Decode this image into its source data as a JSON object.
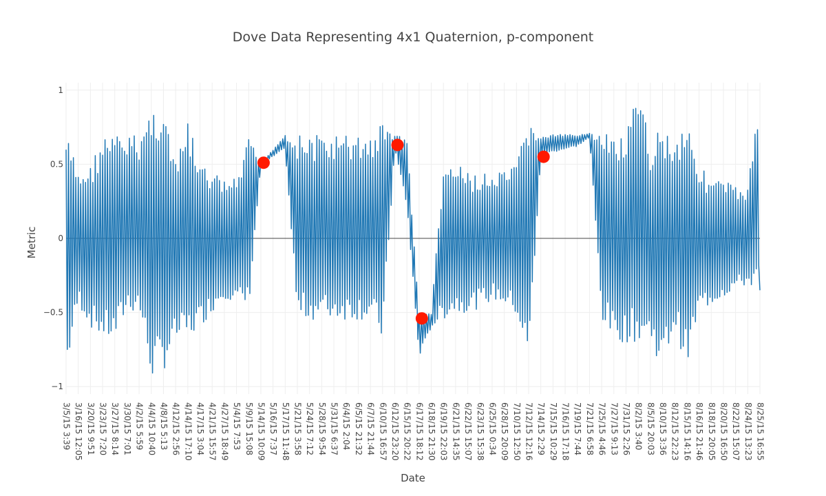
{
  "chart_data": {
    "type": "line",
    "title": "Dove Data Representing 4x1 Quaternion, p-component",
    "xlabel": "Date",
    "ylabel": "Metric",
    "ylim": [
      -1.05,
      1.05
    ],
    "yticks": [
      1,
      0.5,
      0,
      -0.5,
      -1
    ],
    "ytick_labels": [
      "1",
      "0.5",
      "0",
      "−0.5",
      "−1"
    ],
    "grid": true,
    "legend": "none",
    "line_color": "#1f77b4",
    "marker_color": "#ff1a00",
    "x_tick_labels": [
      "3/5/15 3:39",
      "3/16/15 12:05",
      "3/20/15 9:51",
      "3/23/15 7:20",
      "3/27/15 8:14",
      "3/30/15 7:01",
      "4/2/15 5:59",
      "4/4/15 10:40",
      "4/8/15 5:13",
      "4/12/15 2:56",
      "4/14/15 17:10",
      "4/17/15 3:04",
      "4/21/15 15:57",
      "4/27/15 18:49",
      "5/4/15 7:53",
      "5/9/15 15:08",
      "5/14/15 10:09",
      "5/16/15 7:37",
      "5/17/15 11:48",
      "5/21/15 3:58",
      "5/24/15 7:12",
      "5/28/15 9:54",
      "5/31/15 6:37",
      "6/4/15 2:04",
      "6/5/15 21:32",
      "6/7/15 21:44",
      "6/10/15 16:57",
      "6/12/15 23:20",
      "6/15/15 20:22",
      "6/17/15 18:12",
      "6/18/15 21:30",
      "6/19/15 22:03",
      "6/21/15 14:35",
      "6/22/15 15:07",
      "6/23/15 15:38",
      "6/25/15 0:34",
      "6/28/15 20:09",
      "7/10/15 12:50",
      "7/12/15 12:16",
      "7/14/15 2:29",
      "7/15/15 10:29",
      "7/16/15 17:18",
      "7/19/15 7:44",
      "7/21/15 6:58",
      "7/25/15 4:46",
      "7/27/15 9:13",
      "7/31/15 2:26",
      "8/2/15 3:40",
      "8/5/15 20:03",
      "8/10/15 3:36",
      "8/12/15 22:23",
      "8/15/15 14:16",
      "8/16/15 21:46",
      "8/18/15 20:05",
      "8/20/15 16:50",
      "8/22/15 15:07",
      "8/24/15 13:23",
      "8/25/15 16:55"
    ],
    "highlight_points": [
      {
        "x": "5/14/15 10:09",
        "y": 0.51
      },
      {
        "x": "6/12/15 23:20",
        "y": 0.63
      },
      {
        "x": "6/17/15 18:12",
        "y": -0.54
      },
      {
        "x": "7/14/15 2:29",
        "y": 0.55
      }
    ],
    "envelope": [
      {
        "x": "3/5/15 3:39",
        "hi": 0.72,
        "lo": -0.93
      },
      {
        "x": "3/16/15 12:05",
        "hi": 0.45,
        "lo": -0.45
      },
      {
        "x": "3/20/15 9:51",
        "hi": 0.5,
        "lo": -0.6
      },
      {
        "x": "3/23/15 7:20",
        "hi": 0.7,
        "lo": -0.68
      },
      {
        "x": "3/27/15 8:14",
        "hi": 0.7,
        "lo": -0.7
      },
      {
        "x": "3/30/15 7:01",
        "hi": 0.7,
        "lo": -0.5
      },
      {
        "x": "4/2/15 5:59",
        "hi": 0.7,
        "lo": -0.5
      },
      {
        "x": "4/4/15 10:40",
        "hi": 0.9,
        "lo": -0.95
      },
      {
        "x": "4/8/15 5:13",
        "hi": 0.92,
        "lo": -0.9
      },
      {
        "x": "4/12/15 2:56",
        "hi": 0.5,
        "lo": -0.7
      },
      {
        "x": "4/14/15 17:10",
        "hi": 0.8,
        "lo": -0.7
      },
      {
        "x": "4/17/15 3:04",
        "hi": 0.5,
        "lo": -0.6
      },
      {
        "x": "4/21/15 15:57",
        "hi": 0.45,
        "lo": -0.5
      },
      {
        "x": "4/27/15 18:49",
        "hi": 0.4,
        "lo": -0.4
      },
      {
        "x": "5/4/15 7:53",
        "hi": 0.4,
        "lo": -0.45
      },
      {
        "x": "5/9/15 15:08",
        "hi": 0.68,
        "lo": -0.48
      },
      {
        "x": "5/14/15 10:09",
        "hi": 0.51,
        "lo": 0.49
      },
      {
        "x": "5/16/15 7:37",
        "hi": 0.6,
        "lo": 0.55
      },
      {
        "x": "5/17/15 11:48",
        "hi": 0.7,
        "lo": 0.6
      },
      {
        "x": "5/21/15 3:58",
        "hi": 0.7,
        "lo": -0.55
      },
      {
        "x": "5/24/15 7:12",
        "hi": 0.7,
        "lo": -0.55
      },
      {
        "x": "5/28/15 9:54",
        "hi": 0.7,
        "lo": -0.55
      },
      {
        "x": "5/31/15 6:37",
        "hi": 0.7,
        "lo": -0.55
      },
      {
        "x": "6/4/15 2:04",
        "hi": 0.7,
        "lo": -0.55
      },
      {
        "x": "6/5/15 21:32",
        "hi": 0.7,
        "lo": -0.55
      },
      {
        "x": "6/7/15 21:44",
        "hi": 0.7,
        "lo": -0.55
      },
      {
        "x": "6/10/15 16:57",
        "hi": 0.79,
        "lo": -0.7
      },
      {
        "x": "6/12/15 23:20",
        "hi": 0.7,
        "lo": 0.6
      },
      {
        "x": "6/15/15 20:22",
        "hi": 0.68,
        "lo": 0.2
      },
      {
        "x": "6/17/15 18:12",
        "hi": -0.5,
        "lo": -0.8
      },
      {
        "x": "6/18/15 21:30",
        "hi": -0.5,
        "lo": -0.6
      },
      {
        "x": "6/19/15 22:03",
        "hi": 0.5,
        "lo": -0.55
      },
      {
        "x": "6/21/15 14:35",
        "hi": 0.5,
        "lo": -0.5
      },
      {
        "x": "6/22/15 15:07",
        "hi": 0.45,
        "lo": -0.5
      },
      {
        "x": "6/23/15 15:38",
        "hi": 0.44,
        "lo": -0.47
      },
      {
        "x": "6/25/15 0:34",
        "hi": 0.43,
        "lo": -0.42
      },
      {
        "x": "6/28/15 20:09",
        "hi": 0.45,
        "lo": -0.45
      },
      {
        "x": "7/10/15 12:50",
        "hi": 0.5,
        "lo": -0.52
      },
      {
        "x": "7/12/15 12:16",
        "hi": 0.85,
        "lo": -0.85
      },
      {
        "x": "7/14/15 2:29",
        "hi": 0.68,
        "lo": 0.55
      },
      {
        "x": "7/15/15 10:29",
        "hi": 0.7,
        "lo": 0.58
      },
      {
        "x": "7/16/15 17:18",
        "hi": 0.7,
        "lo": 0.6
      },
      {
        "x": "7/19/15 7:44",
        "hi": 0.7,
        "lo": 0.62
      },
      {
        "x": "7/21/15 6:58",
        "hi": 0.71,
        "lo": 0.68
      },
      {
        "x": "7/25/15 4:46",
        "hi": 0.7,
        "lo": -0.55
      },
      {
        "x": "7/27/15 9:13",
        "hi": 0.7,
        "lo": -0.7
      },
      {
        "x": "7/31/15 2:26",
        "hi": 0.7,
        "lo": -0.7
      },
      {
        "x": "8/2/15 3:40",
        "hi": 0.99,
        "lo": -0.7
      },
      {
        "x": "8/5/15 20:03",
        "hi": 0.65,
        "lo": -0.7
      },
      {
        "x": "8/10/15 3:36",
        "hi": 0.8,
        "lo": -0.89
      },
      {
        "x": "8/12/15 22:23",
        "hi": 0.65,
        "lo": -0.6
      },
      {
        "x": "8/15/15 14:16",
        "hi": 0.86,
        "lo": -0.89
      },
      {
        "x": "8/16/15 21:46",
        "hi": 0.5,
        "lo": -0.5
      },
      {
        "x": "8/18/15 20:05",
        "hi": 0.4,
        "lo": -0.45
      },
      {
        "x": "8/20/15 16:50",
        "hi": 0.4,
        "lo": -0.4
      },
      {
        "x": "8/22/15 15:07",
        "hi": 0.35,
        "lo": -0.35
      },
      {
        "x": "8/24/15 13:23",
        "hi": 0.35,
        "lo": -0.32
      },
      {
        "x": "8/25/15 16:55",
        "hi": 0.99,
        "lo": -0.35
      }
    ]
  }
}
